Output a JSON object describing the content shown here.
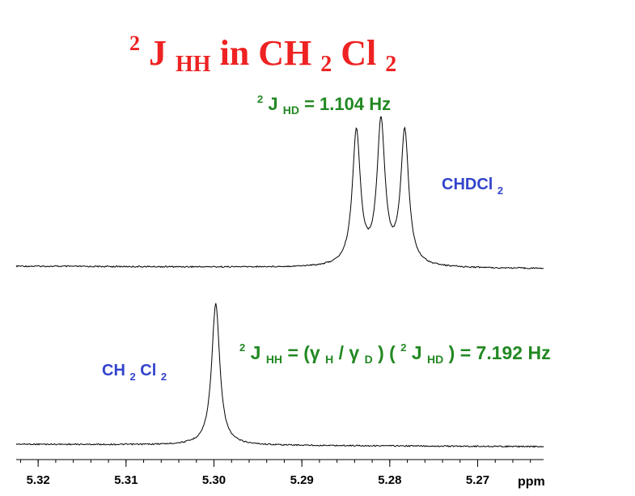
{
  "title": {
    "pre_sup": "2",
    "main": "J",
    "main_sub": "HH",
    "text": " in CH",
    "sub1": "2",
    "text2": "Cl",
    "sub2": "2",
    "color": "#ee2222"
  },
  "annotations": {
    "jhd": {
      "sup": "2",
      "j": "J",
      "sub": "HD",
      "rest": " = 1.104 Hz",
      "color": "#228822"
    },
    "chdcl2": {
      "text": "CHDCl",
      "sub": "2",
      "color": "#3344cc"
    },
    "ch2cl2": {
      "text1": "CH",
      "sub1": "2",
      "text2": "Cl",
      "sub2": "2",
      "color": "#3344cc"
    },
    "jhh_formula": {
      "sup1": "2",
      "j1": "J",
      "sub1": "HH",
      "eq1": " = (γ",
      "subH": "H",
      "slash": " / γ",
      "subD": "D",
      "close1": ") (",
      "sup2": "2",
      "j2": "J",
      "sub2": "HD",
      "close2": ") = 7.192 Hz",
      "color": "#228822"
    }
  },
  "chart_data": {
    "type": "line",
    "xlabel": "ppm",
    "xlim": [
      5.3225,
      5.2625
    ],
    "xticks": [
      5.32,
      5.31,
      5.3,
      5.29,
      5.28,
      5.27
    ],
    "tick_labels": [
      "5.32",
      "5.31",
      "5.30",
      "5.29",
      "5.28",
      "5.27"
    ],
    "grid": false,
    "series": [
      {
        "peaks": [
          {
            "x": 5.2838,
            "height": 1.0,
            "width": 0.00055
          },
          {
            "x": 5.281,
            "height": 1.06,
            "width": 0.00055
          },
          {
            "x": 5.2783,
            "height": 1.0,
            "width": 0.00055
          }
        ]
      },
      {
        "peaks": [
          {
            "x": 5.2998,
            "height": 1.0,
            "width": 0.00055
          }
        ]
      }
    ]
  }
}
